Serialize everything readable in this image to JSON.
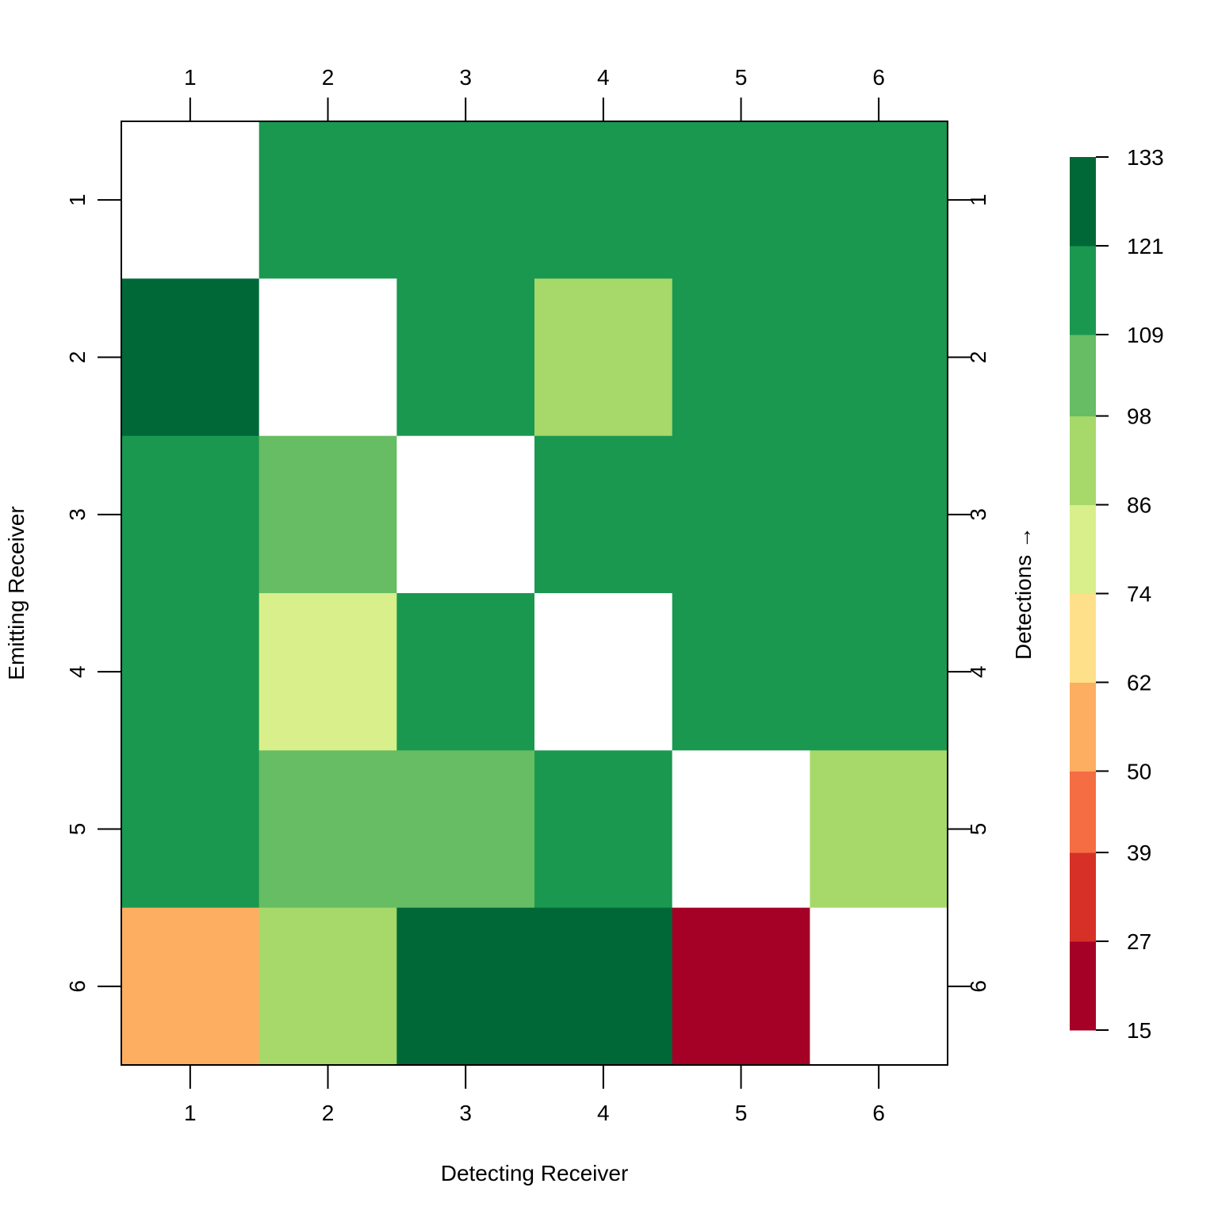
{
  "chart_data": {
    "type": "heatmap",
    "title": "",
    "xlabel": "Detecting Receiver",
    "ylabel": "Emitting Receiver",
    "colorbar_label": "Detections →",
    "x_categories": [
      "1",
      "2",
      "3",
      "4",
      "5",
      "6"
    ],
    "y_categories": [
      "1",
      "2",
      "3",
      "4",
      "5",
      "6"
    ],
    "values": [
      [
        null,
        115,
        115,
        115,
        115,
        115
      ],
      [
        127,
        null,
        115,
        92,
        115,
        115
      ],
      [
        115,
        103,
        null,
        115,
        115,
        115
      ],
      [
        115,
        80,
        115,
        null,
        115,
        115
      ],
      [
        115,
        103,
        103,
        115,
        null,
        92
      ],
      [
        56,
        92,
        127,
        127,
        21,
        null
      ]
    ],
    "colorbar": {
      "breaks": [
        15,
        27,
        39,
        50,
        62,
        74,
        86,
        98,
        109,
        121,
        133
      ],
      "tick_labels": [
        "15",
        "27",
        "39",
        "50",
        "62",
        "74",
        "86",
        "98",
        "109",
        "121",
        "133"
      ],
      "colors": [
        "#a50026",
        "#d73027",
        "#f46d43",
        "#fdae61",
        "#fee08b",
        "#d9ef8b",
        "#a6d96a",
        "#66bd63",
        "#1a9850",
        "#006837"
      ]
    },
    "missing_color": "#ffffff",
    "legend_position": "right"
  }
}
